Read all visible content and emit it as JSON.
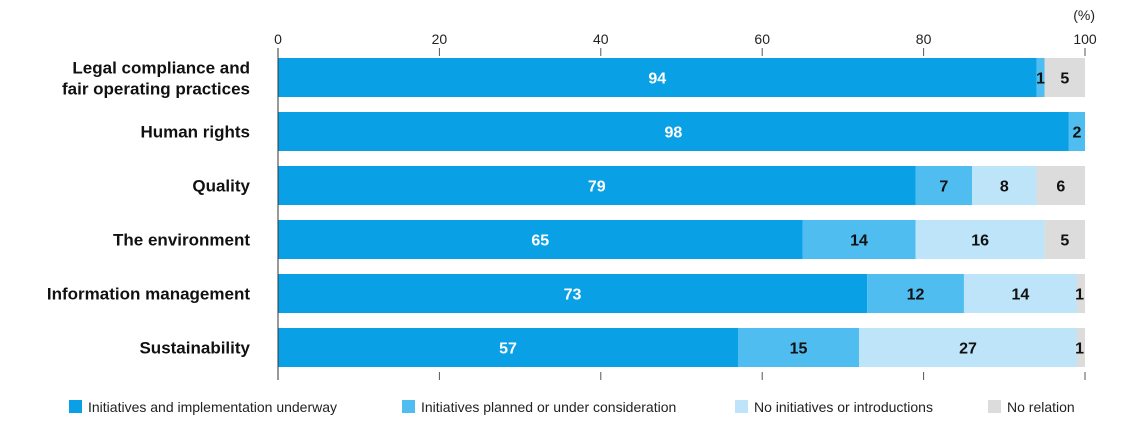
{
  "chart_data": {
    "type": "bar",
    "orientation": "horizontal",
    "stacked": true,
    "unit_label": "(%)",
    "xlim": [
      0,
      100
    ],
    "x_ticks": [
      0,
      20,
      40,
      60,
      80,
      100
    ],
    "categories": [
      [
        "Legal compliance and",
        "fair operating practices"
      ],
      [
        "Human rights"
      ],
      [
        "Quality"
      ],
      [
        "The environment"
      ],
      [
        "Information management"
      ],
      [
        "Sustainability"
      ]
    ],
    "series": [
      {
        "name": "Initiatives and implementation underway",
        "color": "#0aa0e6",
        "label_color": "#ffffff",
        "values": [
          94,
          98,
          79,
          65,
          73,
          57
        ]
      },
      {
        "name": "Initiatives planned or under consideration",
        "color": "#4fbdf0",
        "label_color": "#111111",
        "values": [
          1,
          2,
          7,
          14,
          12,
          15
        ]
      },
      {
        "name": "No initiatives or introductions",
        "color": "#bde4f8",
        "label_color": "#111111",
        "values": [
          0,
          0,
          8,
          16,
          14,
          27
        ]
      },
      {
        "name": "No relation",
        "color": "#dcdcdc",
        "label_color": "#111111",
        "values": [
          5,
          0,
          6,
          5,
          1,
          1
        ]
      }
    ],
    "legend_position": "bottom",
    "grid": false
  }
}
